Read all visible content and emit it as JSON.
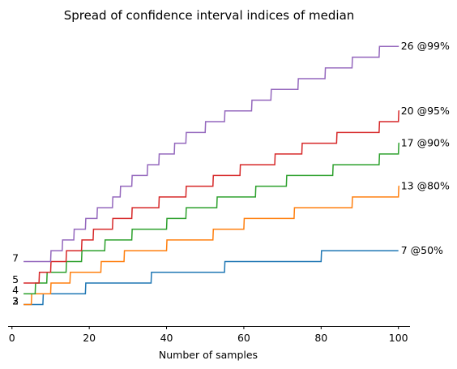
{
  "chart_data": {
    "type": "line",
    "title": "Spread of confidence interval indices of median",
    "xlabel": "Number of samples",
    "ylabel": "",
    "xlim": [
      -1,
      103
    ],
    "ylim": [
      0,
      27.3
    ],
    "xticks": [
      0,
      20,
      40,
      60,
      80,
      100
    ],
    "x_range": [
      3,
      100
    ],
    "grid": false,
    "legend": "none",
    "series": [
      {
        "name": "",
        "color": "#1f77b4",
        "end_label": "7 @50%",
        "start_label": "2",
        "steps": [
          [
            3,
            2
          ],
          [
            8,
            3
          ],
          [
            19,
            4
          ],
          [
            36,
            5
          ],
          [
            55,
            6
          ],
          [
            80,
            7
          ]
        ]
      },
      {
        "name": "",
        "color": "#ff7f0e",
        "end_label": "13 @80%",
        "start_label": "3",
        "steps": [
          [
            4,
            2
          ],
          [
            5,
            3
          ],
          [
            10,
            4
          ],
          [
            15,
            5
          ],
          [
            23,
            6
          ],
          [
            29,
            7
          ],
          [
            40,
            8
          ],
          [
            52,
            9
          ],
          [
            60,
            10
          ],
          [
            73,
            11
          ],
          [
            88,
            12
          ],
          [
            100,
            13
          ]
        ]
      },
      {
        "name": "",
        "color": "#2ca02c",
        "end_label": "17 @90%",
        "start_label": "4",
        "steps": [
          [
            5,
            3
          ],
          [
            6,
            4
          ],
          [
            9,
            5
          ],
          [
            14,
            6
          ],
          [
            18,
            7
          ],
          [
            24,
            8
          ],
          [
            31,
            9
          ],
          [
            40,
            10
          ],
          [
            45,
            11
          ],
          [
            53,
            12
          ],
          [
            63,
            13
          ],
          [
            71,
            14
          ],
          [
            83,
            15
          ],
          [
            95,
            16
          ],
          [
            100,
            17
          ]
        ]
      },
      {
        "name": "",
        "color": "#d62728",
        "end_label": "20 @95%",
        "start_label": "5",
        "steps": [
          [
            6,
            4
          ],
          [
            7,
            5
          ],
          [
            10,
            6
          ],
          [
            14,
            7
          ],
          [
            18,
            8
          ],
          [
            21,
            9
          ],
          [
            26,
            10
          ],
          [
            31,
            11
          ],
          [
            38,
            12
          ],
          [
            45,
            13
          ],
          [
            52,
            14
          ],
          [
            59,
            15
          ],
          [
            68,
            16
          ],
          [
            75,
            17
          ],
          [
            84,
            18
          ],
          [
            95,
            19
          ],
          [
            100,
            20
          ]
        ]
      },
      {
        "name": "",
        "color": "#9467bd",
        "end_label": "26 @99%",
        "start_label": "7",
        "steps": [
          [
            8,
            6
          ],
          [
            10,
            7
          ],
          [
            13,
            8
          ],
          [
            16,
            9
          ],
          [
            19,
            10
          ],
          [
            22,
            11
          ],
          [
            26,
            12
          ],
          [
            28,
            13
          ],
          [
            31,
            14
          ],
          [
            35,
            15
          ],
          [
            38,
            16
          ],
          [
            42,
            17
          ],
          [
            45,
            18
          ],
          [
            50,
            19
          ],
          [
            55,
            20
          ],
          [
            62,
            21
          ],
          [
            67,
            22
          ],
          [
            74,
            23
          ],
          [
            81,
            24
          ],
          [
            88,
            25
          ],
          [
            95,
            26
          ],
          [
            100,
            26
          ]
        ]
      }
    ]
  }
}
